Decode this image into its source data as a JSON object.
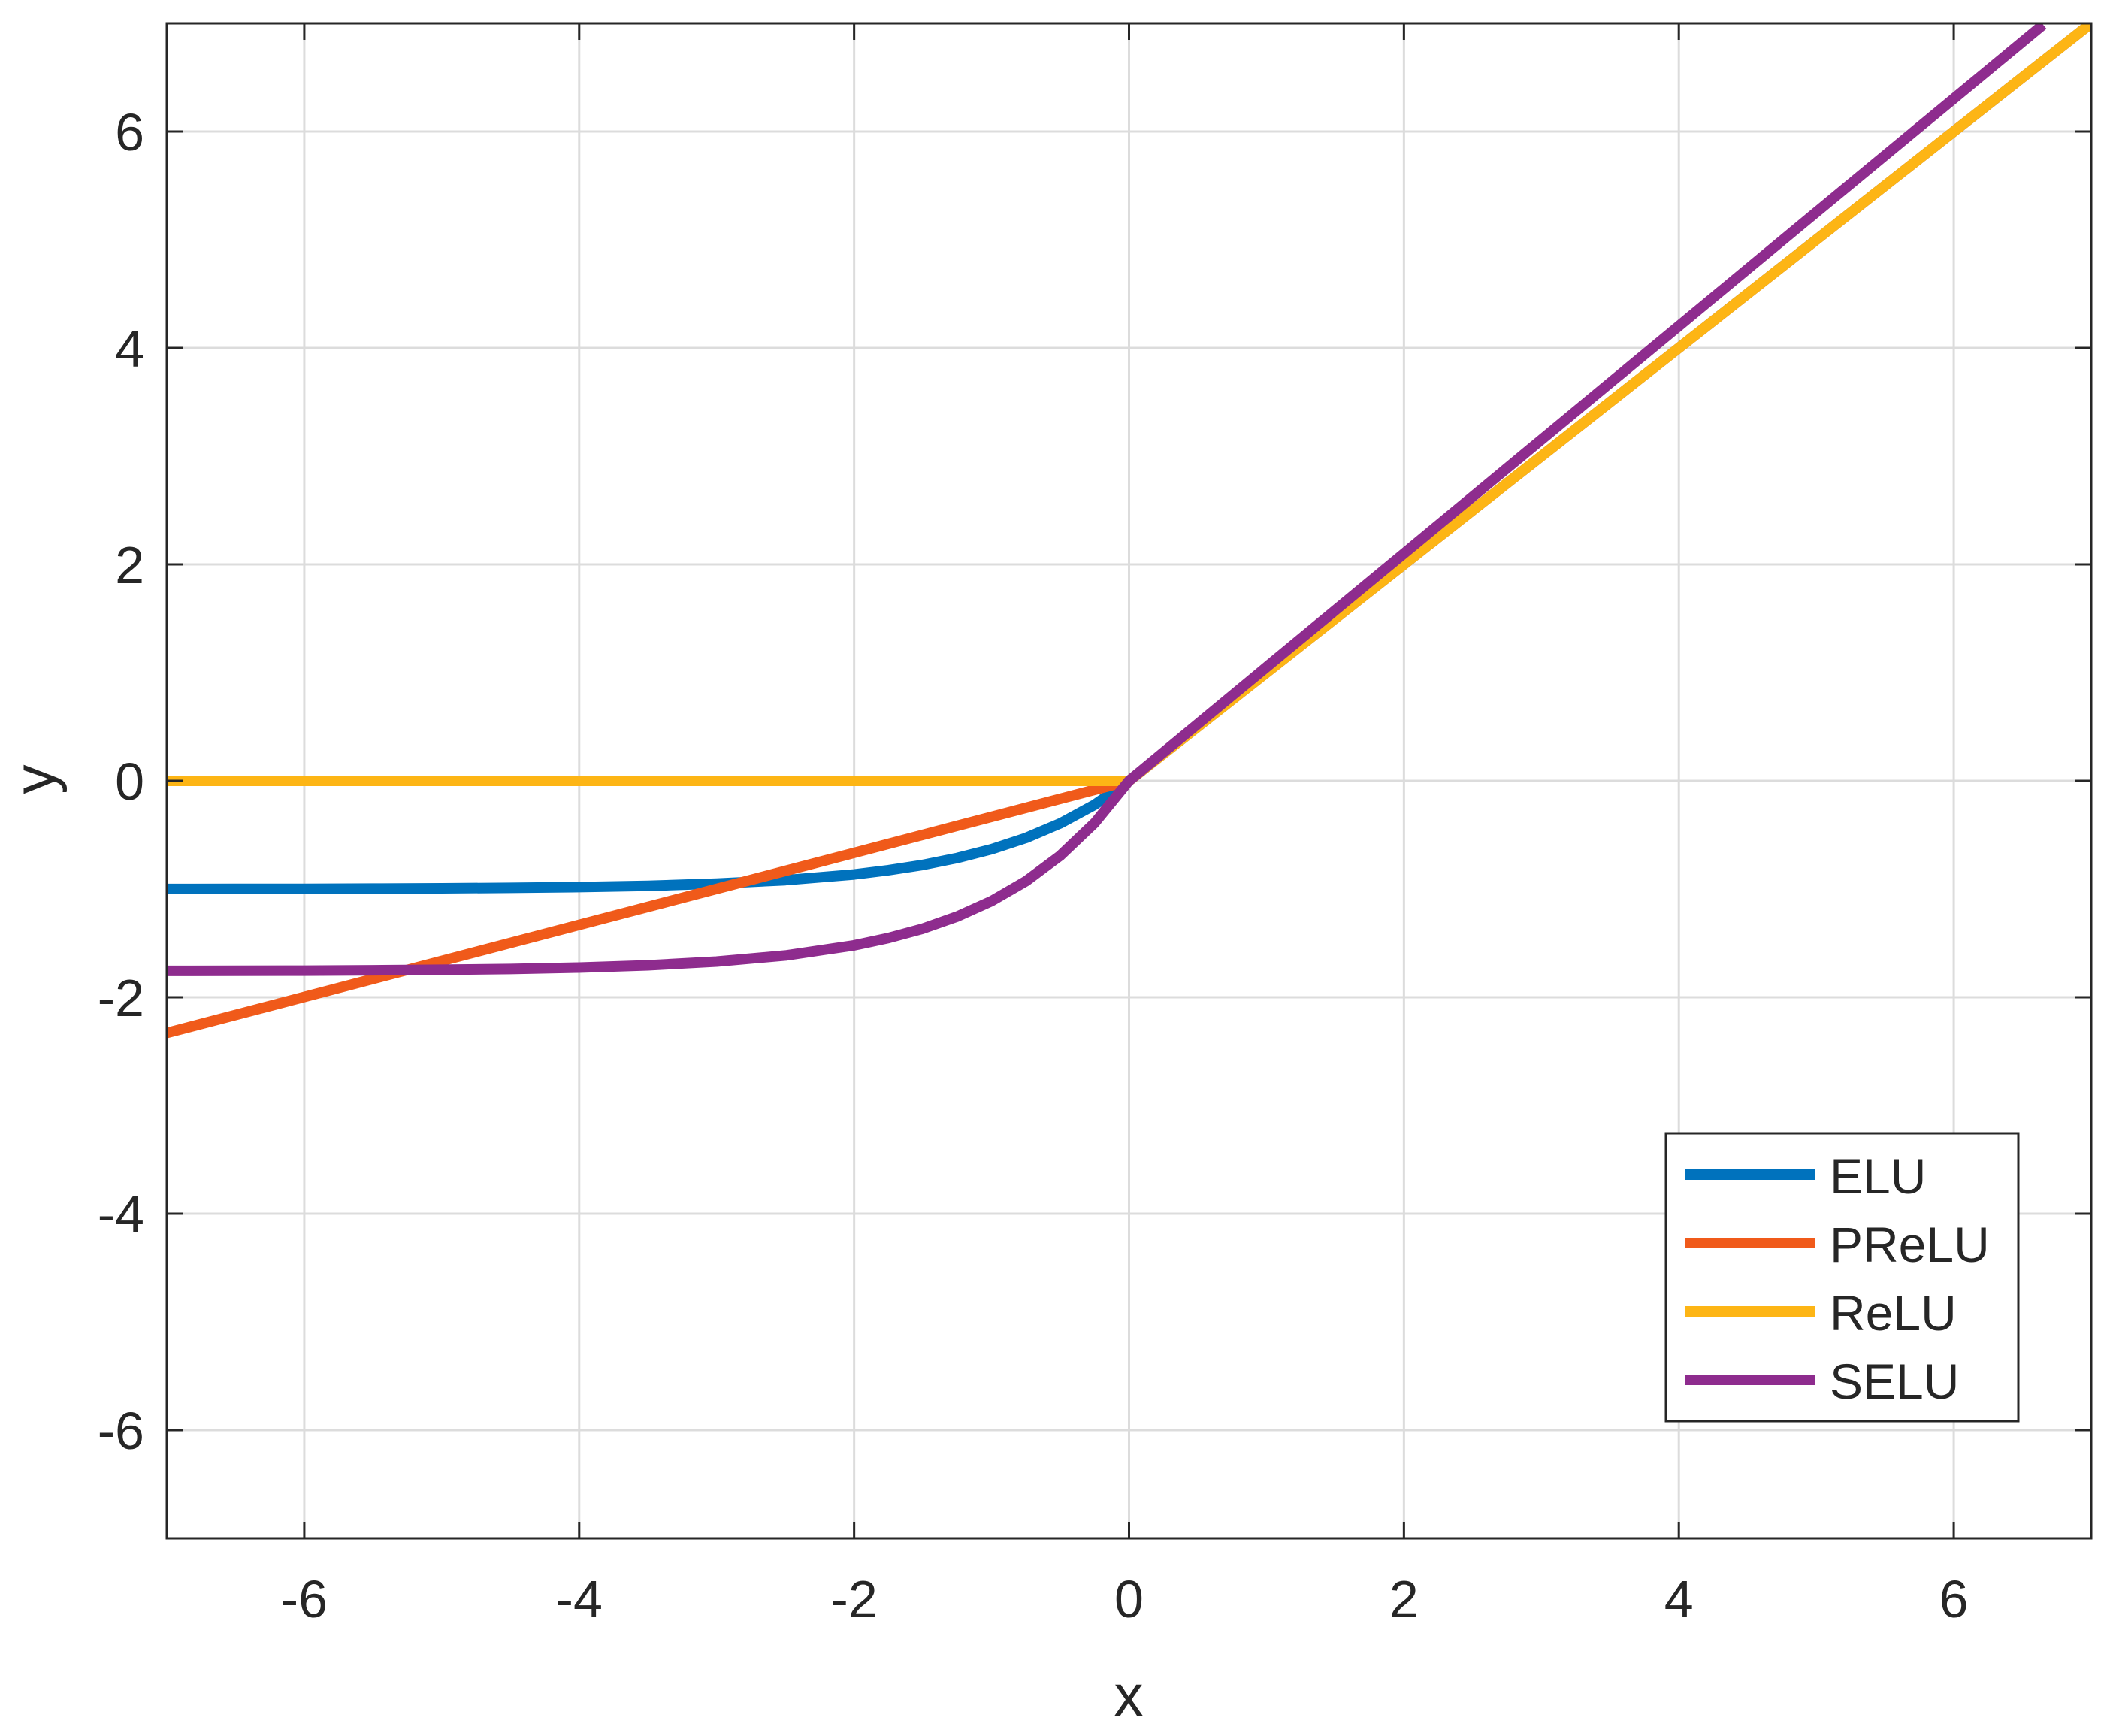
{
  "chart_data": {
    "type": "line",
    "xlabel": "x",
    "ylabel": "y",
    "xlim": [
      -7,
      7
    ],
    "ylim": [
      -7,
      7
    ],
    "xticks": [
      -6,
      -4,
      -2,
      0,
      2,
      4,
      6
    ],
    "yticks": [
      -6,
      -4,
      -2,
      0,
      2,
      4,
      6
    ],
    "grid": true,
    "legend_position": "bottom-right",
    "series": [
      {
        "name": "ELU",
        "color": "#0072BD",
        "x": [
          -7,
          -6.5,
          -6,
          -5.5,
          -5,
          -4.5,
          -4,
          -3.5,
          -3,
          -2.5,
          -2,
          -1.75,
          -1.5,
          -1.25,
          -1,
          -0.75,
          -0.5,
          -0.25,
          0,
          1,
          2,
          3,
          4,
          5,
          6,
          7
        ],
        "y": [
          -0.999,
          -0.998,
          -0.998,
          -0.996,
          -0.993,
          -0.989,
          -0.982,
          -0.97,
          -0.95,
          -0.918,
          -0.865,
          -0.826,
          -0.777,
          -0.713,
          -0.632,
          -0.528,
          -0.393,
          -0.221,
          0,
          1,
          2,
          3,
          4,
          5,
          6,
          7
        ]
      },
      {
        "name": "PReLU",
        "color": "#F05A1A",
        "x": [
          -7,
          0,
          7
        ],
        "y": [
          -2.33,
          0,
          7
        ]
      },
      {
        "name": "ReLU",
        "color": "#FDB515",
        "x": [
          -7,
          0,
          7
        ],
        "y": [
          0,
          0,
          7
        ]
      },
      {
        "name": "SELU",
        "color": "#8E2C8E",
        "x": [
          -7,
          -6.5,
          -6,
          -5.5,
          -5,
          -4.5,
          -4,
          -3.5,
          -3,
          -2.5,
          -2,
          -1.75,
          -1.5,
          -1.25,
          -1,
          -0.75,
          -0.5,
          -0.25,
          0,
          1,
          2,
          3,
          4,
          5,
          6,
          6.65
        ],
        "y": [
          -1.756,
          -1.755,
          -1.754,
          -1.751,
          -1.746,
          -1.739,
          -1.726,
          -1.705,
          -1.67,
          -1.614,
          -1.52,
          -1.452,
          -1.366,
          -1.254,
          -1.111,
          -0.928,
          -0.691,
          -0.389,
          0,
          1.051,
          2.101,
          3.152,
          4.203,
          5.254,
          6.304,
          6.987
        ]
      }
    ]
  }
}
